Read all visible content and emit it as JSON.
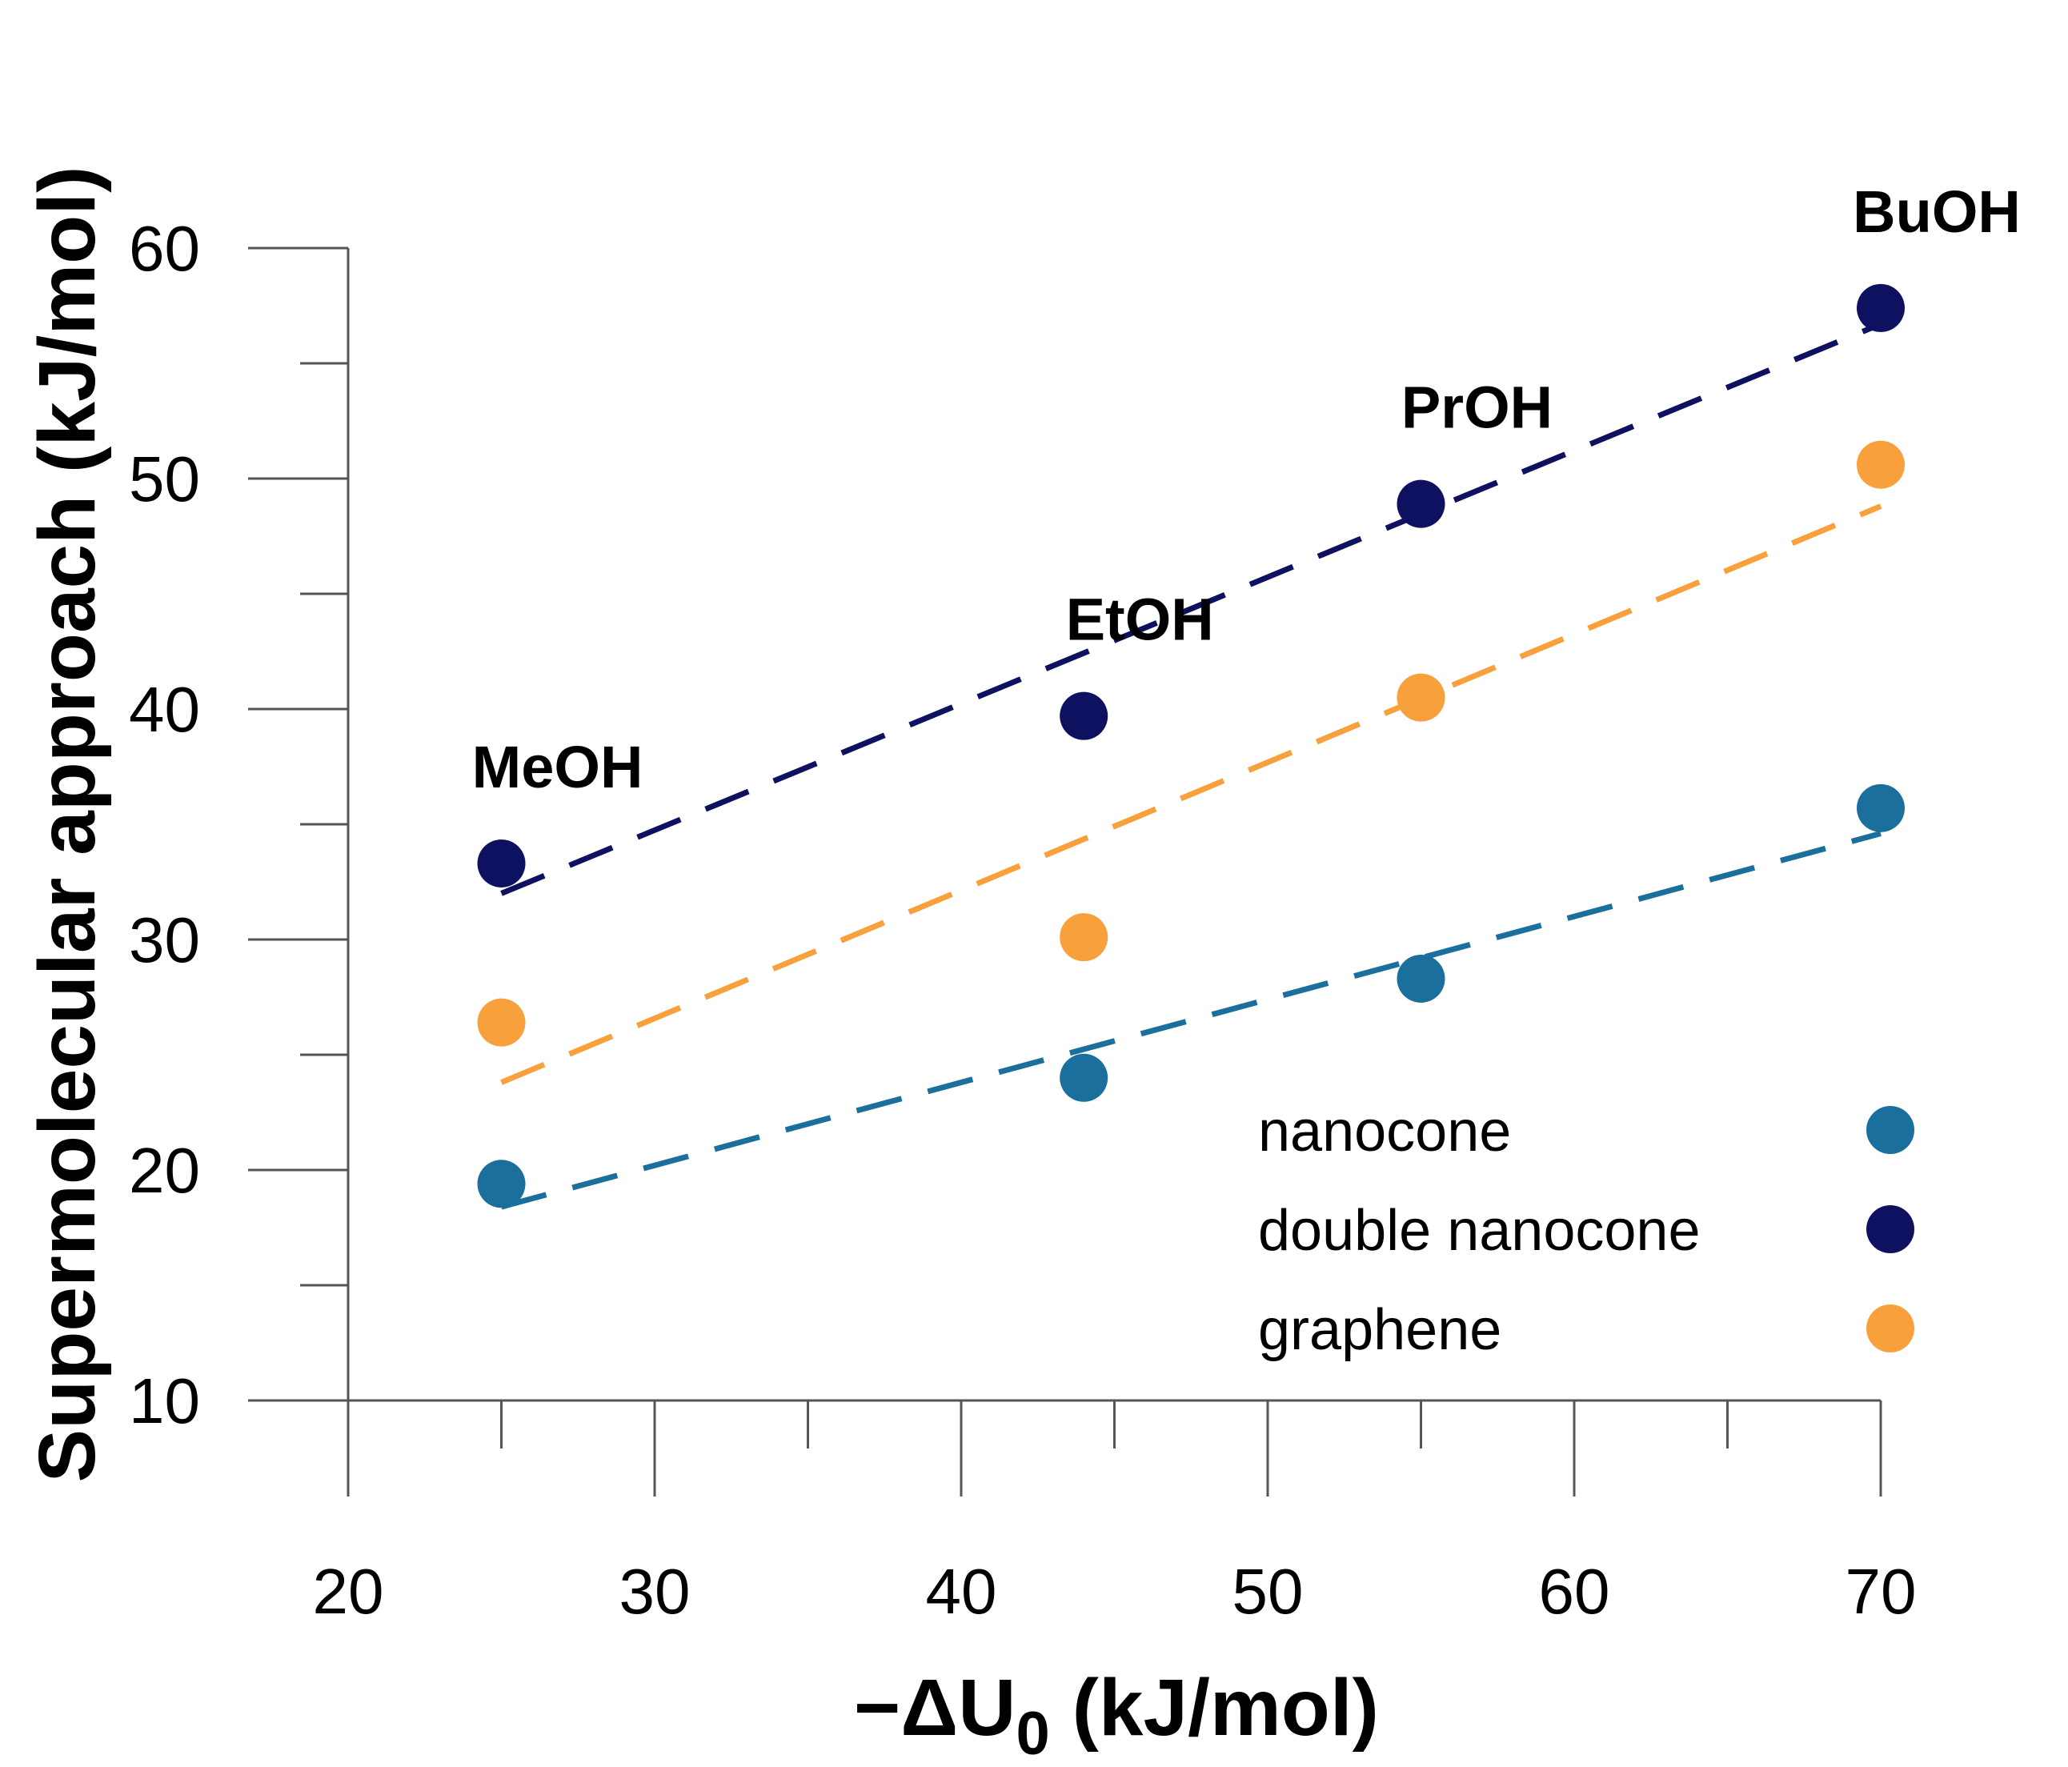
{
  "chart_data": {
    "type": "scatter",
    "title": "",
    "xlabel": "−ΔU₀ (kJ/mol)",
    "xlabel_main": "−ΔU",
    "xlabel_sub": "0",
    "xlabel_unit": " (kJ/mol)",
    "ylabel": "Supermolecular approach (kJ/mol)",
    "xlim": [
      20,
      70
    ],
    "ylim": [
      10,
      60
    ],
    "x_ticks": [
      20,
      30,
      40,
      50,
      60,
      70
    ],
    "y_ticks": [
      10,
      20,
      30,
      40,
      50,
      60
    ],
    "grid": false,
    "legend_position": "bottom-right",
    "series": [
      {
        "name": "nanocone",
        "color": "#1B6F9C",
        "x": [
          25,
          44,
          55,
          70
        ],
        "y": [
          19.4,
          24.0,
          28.3,
          35.7
        ],
        "trendline": {
          "x": [
            25,
            70
          ],
          "y": [
            18.4,
            34.6
          ]
        }
      },
      {
        "name": "double nanocone",
        "color": "#0E1060",
        "x": [
          25,
          44,
          55,
          70
        ],
        "y": [
          33.3,
          39.7,
          48.9,
          57.4
        ],
        "trendline": {
          "x": [
            25,
            70
          ],
          "y": [
            32.0,
            56.7
          ]
        }
      },
      {
        "name": "graphene",
        "color": "#F7A03C",
        "x": [
          25,
          44,
          55,
          70
        ],
        "y": [
          26.4,
          30.1,
          40.5,
          50.6
        ],
        "trendline": {
          "x": [
            25,
            70
          ],
          "y": [
            23.8,
            48.8
          ]
        }
      }
    ],
    "annotations": [
      {
        "text": "MeOH",
        "x": 25,
        "y": 33.3
      },
      {
        "text": "EtOH",
        "x": 44,
        "y": 39.7
      },
      {
        "text": "PrOH",
        "x": 55,
        "y": 48.9
      },
      {
        "text": "BuOH",
        "x": 70,
        "y": 57.4
      }
    ]
  }
}
